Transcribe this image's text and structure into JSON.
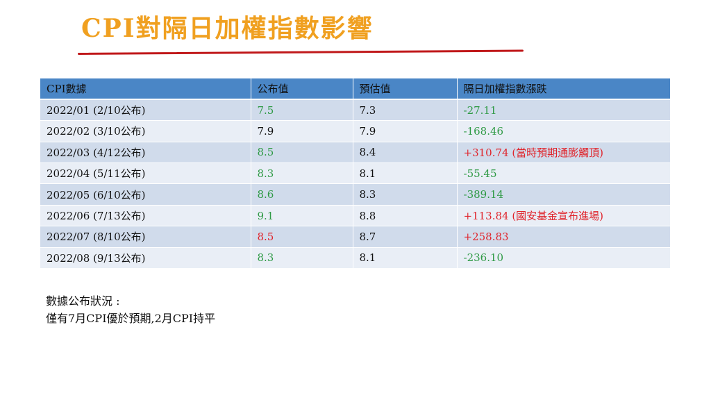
{
  "title": "CPI對隔日加權指數影響",
  "colors": {
    "up": "#e0242b",
    "down": "#2f9a45",
    "neutral": "#111111"
  },
  "table": {
    "headers": [
      "CPI數據",
      "公布值",
      "預估值",
      "隔日加權指數漲跌"
    ],
    "rows": [
      {
        "period": "2022/01  (2/10公布)",
        "actual": "7.5",
        "actual_dir": "down",
        "forecast": "7.3",
        "change": "-27.11",
        "change_dir": "down"
      },
      {
        "period": "2022/02  (3/10公布)",
        "actual": "7.9",
        "actual_dir": "neutral",
        "forecast": "7.9",
        "change": "-168.46",
        "change_dir": "down"
      },
      {
        "period": "2022/03  (4/12公布)",
        "actual": "8.5",
        "actual_dir": "down",
        "forecast": "8.4",
        "change": "+310.74 (當時預期通膨觸頂)",
        "change_dir": "up"
      },
      {
        "period": "2022/04  (5/11公布)",
        "actual": "8.3",
        "actual_dir": "down",
        "forecast": "8.1",
        "change": "-55.45",
        "change_dir": "down"
      },
      {
        "period": "2022/05  (6/10公布)",
        "actual": "8.6",
        "actual_dir": "down",
        "forecast": "8.3",
        "change": "-389.14",
        "change_dir": "down"
      },
      {
        "period": "2022/06  (7/13公布)",
        "actual": "9.1",
        "actual_dir": "down",
        "forecast": "8.8",
        "change": "+113.84 (國安基金宣布進場)",
        "change_dir": "up"
      },
      {
        "period": "2022/07  (8/10公布)",
        "actual": "8.5",
        "actual_dir": "up",
        "forecast": "8.7",
        "change": "+258.83",
        "change_dir": "up"
      },
      {
        "period": "2022/08  (9/13公布)",
        "actual": "8.3",
        "actual_dir": "down",
        "forecast": "8.1",
        "change": "-236.10",
        "change_dir": "down"
      }
    ]
  },
  "note": {
    "line1": "數據公布狀況 :",
    "line2": "僅有7月CPI優於預期,2月CPI持平"
  }
}
